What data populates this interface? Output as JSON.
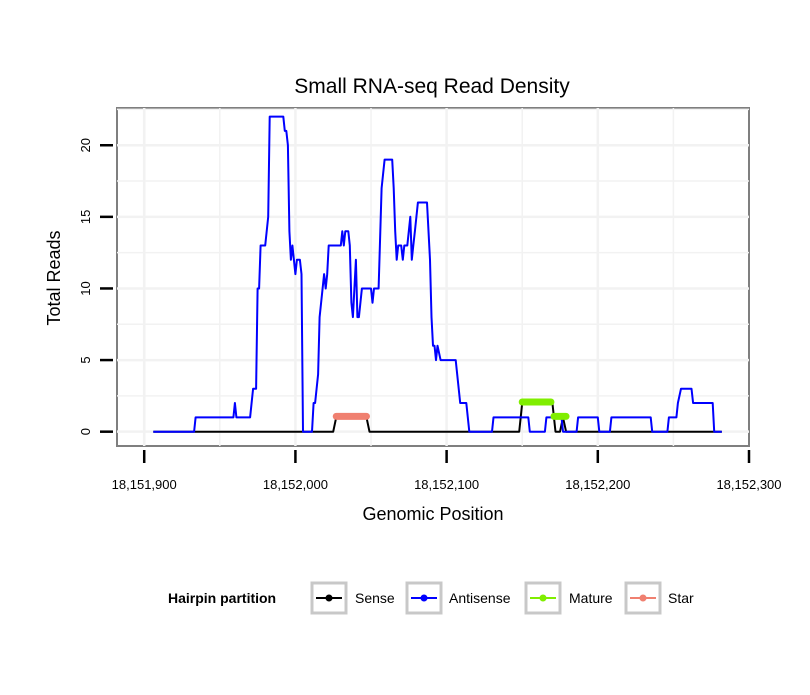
{
  "chart_data": {
    "type": "line",
    "title": "Small RNA-seq Read Density",
    "xlabel": "Genomic Position",
    "ylabel": "Total Reads",
    "xlim": [
      18151882,
      18152300
    ],
    "ylim": [
      -1,
      22.6
    ],
    "x_ticks": [
      18151900,
      18152000,
      18152100,
      18152200,
      18152300
    ],
    "x_tick_labels": [
      "18,151,900",
      "18,152,000",
      "18,152,100",
      "18,152,200",
      "18,152,300"
    ],
    "y_ticks": [
      0,
      5,
      10,
      15,
      20
    ],
    "y_tick_labels": [
      "0",
      "5",
      "10",
      "15",
      "20"
    ],
    "grid": true,
    "legend": {
      "title": "Hairpin partition",
      "position": "bottom",
      "items": [
        {
          "label": "Sense",
          "color": "#000000"
        },
        {
          "label": "Antisense",
          "color": "#0000ff"
        },
        {
          "label": "Mature",
          "color": "#80ee00"
        },
        {
          "label": "Star",
          "color": "#f08070"
        }
      ]
    },
    "series": [
      {
        "name": "Sense",
        "color": "#000000",
        "points": [
          [
            18151906,
            0
          ],
          [
            18152025,
            0
          ],
          [
            18152027,
            1
          ],
          [
            18152047,
            1
          ],
          [
            18152049,
            0
          ],
          [
            18152148,
            0
          ],
          [
            18152149,
            1
          ],
          [
            18152150,
            2
          ],
          [
            18152170,
            2
          ],
          [
            18152172,
            0
          ],
          [
            18152175,
            0
          ],
          [
            18152177,
            1
          ],
          [
            18152179,
            0
          ],
          [
            18152282,
            0
          ]
        ]
      },
      {
        "name": "Antisense",
        "color": "#0000ff",
        "points": [
          [
            18151906,
            0
          ],
          [
            18151933,
            0
          ],
          [
            18151934,
            1
          ],
          [
            18151959,
            1
          ],
          [
            18151960,
            2
          ],
          [
            18151961,
            1
          ],
          [
            18151970,
            1
          ],
          [
            18151971,
            2
          ],
          [
            18151972,
            3
          ],
          [
            18151974,
            3
          ],
          [
            18151975,
            10
          ],
          [
            18151976,
            10
          ],
          [
            18151977,
            13
          ],
          [
            18151980,
            13
          ],
          [
            18151981,
            14
          ],
          [
            18151982,
            15
          ],
          [
            18151983,
            22
          ],
          [
            18151992,
            22
          ],
          [
            18151993,
            21
          ],
          [
            18151994,
            21
          ],
          [
            18151995,
            20
          ],
          [
            18151996,
            14
          ],
          [
            18151997,
            12
          ],
          [
            18151998,
            13
          ],
          [
            18152000,
            11
          ],
          [
            18152001,
            12
          ],
          [
            18152003,
            12
          ],
          [
            18152004,
            11
          ],
          [
            18152005,
            0
          ],
          [
            18152011,
            0
          ],
          [
            18152012,
            2
          ],
          [
            18152013,
            2
          ],
          [
            18152014,
            3
          ],
          [
            18152015,
            4
          ],
          [
            18152016,
            8
          ],
          [
            18152017,
            9
          ],
          [
            18152018,
            10
          ],
          [
            18152019,
            11
          ],
          [
            18152020,
            10
          ],
          [
            18152021,
            11
          ],
          [
            18152022,
            13
          ],
          [
            18152030,
            13
          ],
          [
            18152031,
            14
          ],
          [
            18152032,
            13
          ],
          [
            18152033,
            14
          ],
          [
            18152035,
            14
          ],
          [
            18152036,
            13
          ],
          [
            18152037,
            9
          ],
          [
            18152038,
            8
          ],
          [
            18152039,
            10
          ],
          [
            18152040,
            12
          ],
          [
            18152041,
            8
          ],
          [
            18152042,
            8
          ],
          [
            18152043,
            9
          ],
          [
            18152044,
            10
          ],
          [
            18152050,
            10
          ],
          [
            18152051,
            9
          ],
          [
            18152052,
            10
          ],
          [
            18152055,
            10
          ],
          [
            18152057,
            17
          ],
          [
            18152058,
            18
          ],
          [
            18152059,
            19
          ],
          [
            18152064,
            19
          ],
          [
            18152065,
            17
          ],
          [
            18152066,
            14
          ],
          [
            18152067,
            12
          ],
          [
            18152068,
            13
          ],
          [
            18152070,
            13
          ],
          [
            18152071,
            12
          ],
          [
            18152072,
            13
          ],
          [
            18152074,
            13
          ],
          [
            18152075,
            14
          ],
          [
            18152076,
            15
          ],
          [
            18152077,
            12
          ],
          [
            18152078,
            13
          ],
          [
            18152079,
            14
          ],
          [
            18152080,
            15
          ],
          [
            18152081,
            16
          ],
          [
            18152087,
            16
          ],
          [
            18152088,
            14
          ],
          [
            18152089,
            12
          ],
          [
            18152090,
            8
          ],
          [
            18152091,
            6
          ],
          [
            18152092,
            6
          ],
          [
            18152093,
            5
          ],
          [
            18152094,
            6
          ],
          [
            18152096,
            5
          ],
          [
            18152106,
            5
          ],
          [
            18152107,
            4
          ],
          [
            18152108,
            3
          ],
          [
            18152109,
            2
          ],
          [
            18152113,
            2
          ],
          [
            18152114,
            1
          ],
          [
            18152115,
            0
          ],
          [
            18152130,
            0
          ],
          [
            18152131,
            1
          ],
          [
            18152154,
            1
          ],
          [
            18152155,
            0
          ],
          [
            18152165,
            0
          ],
          [
            18152166,
            1
          ],
          [
            18152176,
            1
          ],
          [
            18152177,
            0
          ],
          [
            18152186,
            0
          ],
          [
            18152187,
            1
          ],
          [
            18152200,
            1
          ],
          [
            18152201,
            0
          ],
          [
            18152208,
            0
          ],
          [
            18152209,
            1
          ],
          [
            18152235,
            1
          ],
          [
            18152236,
            0
          ],
          [
            18152246,
            0
          ],
          [
            18152247,
            1
          ],
          [
            18152252,
            1
          ],
          [
            18152253,
            2
          ],
          [
            18152255,
            3
          ],
          [
            18152262,
            3
          ],
          [
            18152263,
            2
          ],
          [
            18152276,
            2
          ],
          [
            18152277,
            0
          ],
          [
            18152282,
            0
          ]
        ]
      }
    ],
    "segments": [
      {
        "name": "Mature",
        "color": "#80ee00",
        "ranges": [
          [
            18152150,
            2,
            18152169,
            2
          ],
          [
            18152171,
            1,
            18152179,
            1
          ]
        ]
      },
      {
        "name": "Star",
        "color": "#f08070",
        "ranges": [
          [
            18152027,
            1,
            18152047,
            1
          ]
        ]
      }
    ]
  }
}
